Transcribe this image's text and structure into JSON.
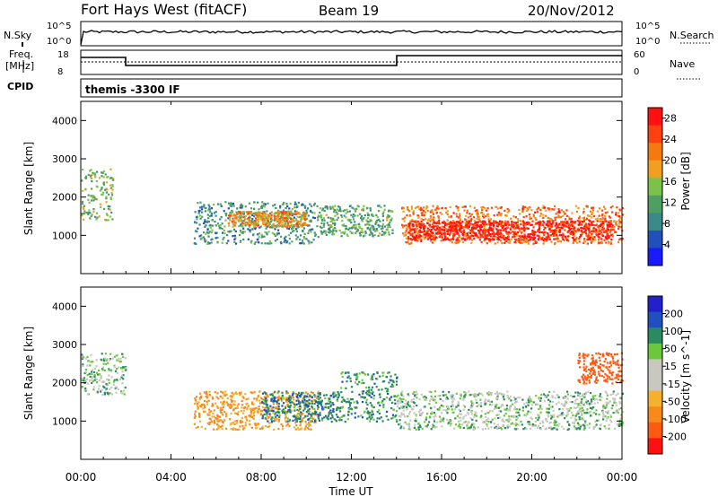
{
  "header": {
    "title": "Fort Hays West (fitACF)",
    "beam": "Beam 19",
    "date": "20/Nov/2012"
  },
  "params": {
    "nsky_label": "N.Sky",
    "nsearch_label": "N.Search",
    "nsky_ticks": [
      "10^5",
      "10^0"
    ],
    "nsearch_ticks": [
      "10^5",
      "10^0"
    ],
    "freq_label": "Freq.",
    "freq_unit": "[MHz]",
    "freq_ticks": [
      "18",
      "8"
    ],
    "nave_label": "Nave",
    "nave_ticks": [
      "60",
      "0"
    ],
    "cpid_label": "CPID",
    "cpid_value": "themis -3300 IF"
  },
  "colors": {
    "power_scale": [
      "#1a1aff",
      "#2050b8",
      "#3a8a8a",
      "#4fa060",
      "#7bc24a",
      "#f0a020",
      "#f47a10",
      "#ff4010",
      "#ff1010"
    ],
    "velocity_scale": [
      "#ff1010",
      "#ff5a10",
      "#f78a1a",
      "#f5b030",
      "#c8c8c0",
      "#c8c8c0",
      "#6ac83a",
      "#2a8a60",
      "#2050c0",
      "#2020cc"
    ],
    "ground_scatter": "#c8c8c0"
  },
  "chart_data": [
    {
      "type": "heatmap",
      "name": "power",
      "ylabel": "Slant Range [km]",
      "ylim": [
        0,
        4500
      ],
      "yticks": [
        1000,
        2000,
        3000,
        4000
      ],
      "xticks": [
        "00:00",
        "04:00",
        "08:00",
        "12:00",
        "16:00",
        "20:00",
        "00:00"
      ],
      "colorbar_label": "Power [dB]",
      "colorbar_ticks": [
        "4",
        "8",
        "12",
        "16",
        "20",
        "24",
        "28"
      ],
      "colorbar_range": [
        0,
        30
      ],
      "regions": [
        {
          "t": [
            0.0,
            1.4
          ],
          "range": [
            1400,
            2800
          ],
          "power": 14
        },
        {
          "t": [
            5.0,
            10.5
          ],
          "range": [
            800,
            1900
          ],
          "power": 10
        },
        {
          "t": [
            6.5,
            10.0
          ],
          "range": [
            1250,
            1650
          ],
          "power": 20
        },
        {
          "t": [
            10.5,
            13.8
          ],
          "range": [
            1000,
            1800
          ],
          "power": 12
        },
        {
          "t": [
            14.2,
            24.0
          ],
          "range": [
            800,
            1800
          ],
          "power": 22
        },
        {
          "t": [
            14.5,
            23.5
          ],
          "range": [
            900,
            1400
          ],
          "power": 28
        }
      ]
    },
    {
      "type": "heatmap",
      "name": "velocity",
      "ylabel": "Slant Range [km]",
      "ylim": [
        0,
        4500
      ],
      "yticks": [
        1000,
        2000,
        3000,
        4000
      ],
      "xticks": [
        "00:00",
        "04:00",
        "08:00",
        "12:00",
        "16:00",
        "20:00",
        "00:00"
      ],
      "xlabel": "Time UT",
      "colorbar_label": "Velocity [m s^-1]",
      "colorbar_ticks": [
        "200",
        "100",
        "50",
        "15",
        "-15",
        "-50",
        "-100",
        "-200"
      ],
      "colorbar_range": [
        -200,
        200
      ],
      "regions": [
        {
          "t": [
            0.0,
            2.0
          ],
          "range": [
            1700,
            2800
          ],
          "velocity": 0
        },
        {
          "t": [
            5.0,
            10.5
          ],
          "range": [
            800,
            1800
          ],
          "velocity": -60
        },
        {
          "t": [
            8.0,
            11.5
          ],
          "range": [
            1000,
            1800
          ],
          "velocity": 40
        },
        {
          "t": [
            11.5,
            14.0
          ],
          "range": [
            1000,
            2300
          ],
          "velocity": 30
        },
        {
          "t": [
            14.0,
            24.0
          ],
          "range": [
            800,
            1800
          ],
          "velocity": 0
        },
        {
          "t": [
            22.0,
            24.0
          ],
          "range": [
            2000,
            2800
          ],
          "velocity": -150
        }
      ]
    }
  ]
}
